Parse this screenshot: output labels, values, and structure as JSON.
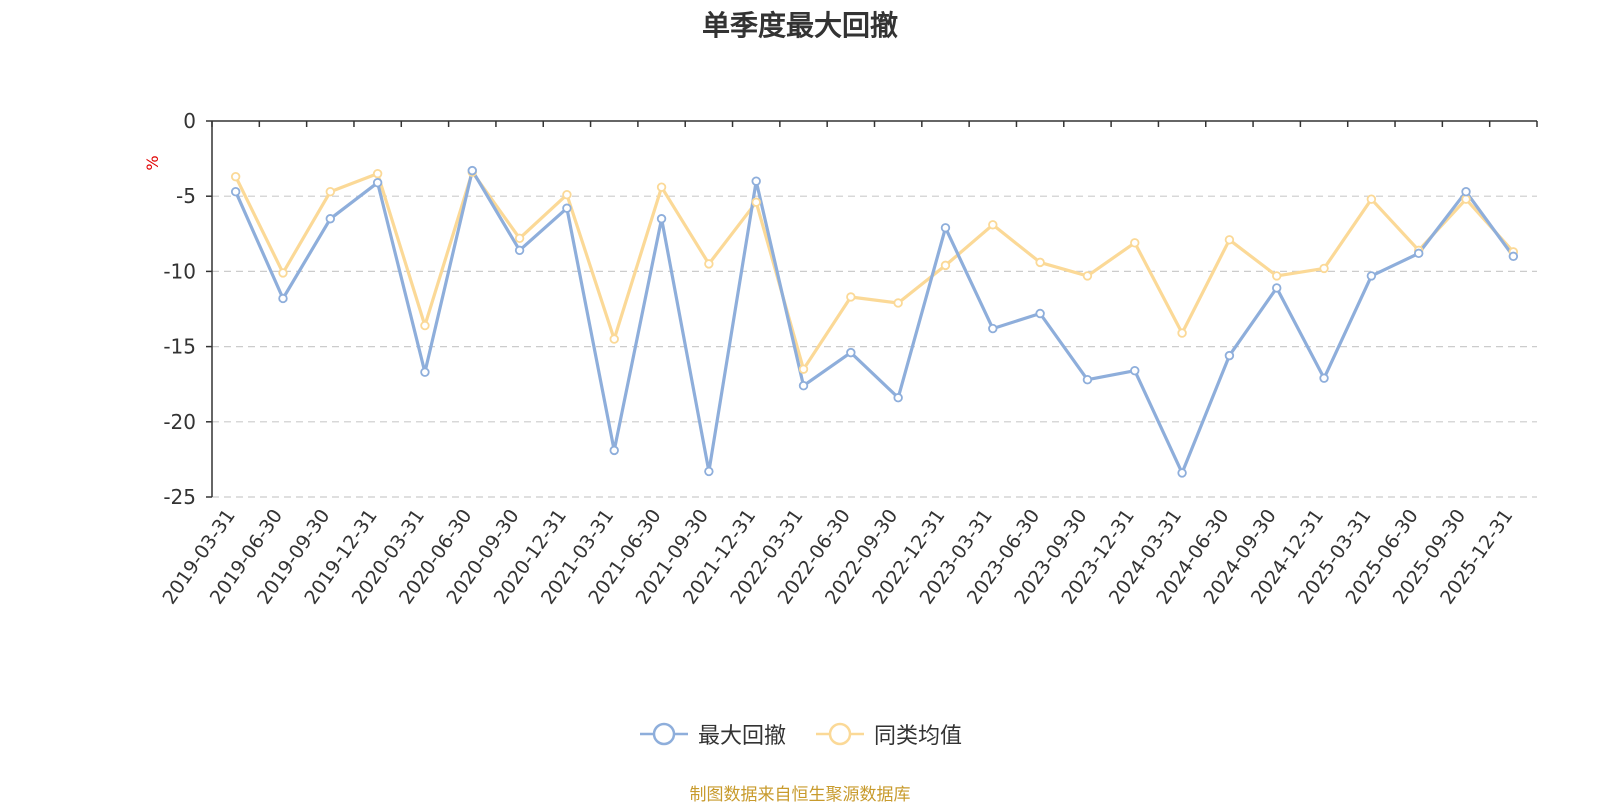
{
  "title": "单季度最大回撤",
  "source": "制图数据来自恒生聚源数据库",
  "chart_data": {
    "type": "line",
    "title": "单季度最大回撤",
    "ylabel": "%",
    "ylim": [
      -25,
      0
    ],
    "yticks": [
      0,
      -5,
      -10,
      -15,
      -20,
      -25
    ],
    "grid": true,
    "legend_position": "bottom-center",
    "categories": [
      "2019-03-31",
      "2019-06-30",
      "2019-09-30",
      "2019-12-31",
      "2020-03-31",
      "2020-06-30",
      "2020-09-30",
      "2020-12-31",
      "2021-03-31",
      "2021-06-30",
      "2021-09-30",
      "2021-12-31",
      "2022-03-31",
      "2022-06-30",
      "2022-09-30",
      "2022-12-31",
      "2023-03-31",
      "2023-06-30",
      "2023-09-30",
      "2023-12-31",
      "2024-03-31",
      "2024-06-30",
      "2024-09-30",
      "2024-12-31",
      "2025-03-31",
      "2025-06-30",
      "2025-09-30",
      "2025-12-31"
    ],
    "series": [
      {
        "name": "最大回撤",
        "color": "#8eaedb",
        "values": [
          -4.7,
          -11.8,
          -6.5,
          -4.1,
          -16.7,
          -3.3,
          -8.6,
          -5.8,
          -21.9,
          -6.5,
          -23.3,
          -4.0,
          -17.6,
          -15.4,
          -18.4,
          -7.1,
          -13.8,
          -12.8,
          -17.2,
          -16.6,
          -23.4,
          -15.6,
          -11.1,
          -17.1,
          -10.3,
          -8.8,
          -4.7,
          -9.0
        ]
      },
      {
        "name": "同类均值",
        "color": "#fbd997",
        "values": [
          -3.7,
          -10.1,
          -4.7,
          -3.5,
          -13.6,
          -3.4,
          -7.8,
          -4.9,
          -14.5,
          -4.4,
          -9.5,
          -5.4,
          -16.5,
          -11.7,
          -12.1,
          -9.6,
          -6.9,
          -9.4,
          -10.3,
          -8.1,
          -14.1,
          -7.9,
          -10.3,
          -9.8,
          -5.2,
          -8.6,
          -5.2,
          -8.7
        ]
      }
    ]
  }
}
